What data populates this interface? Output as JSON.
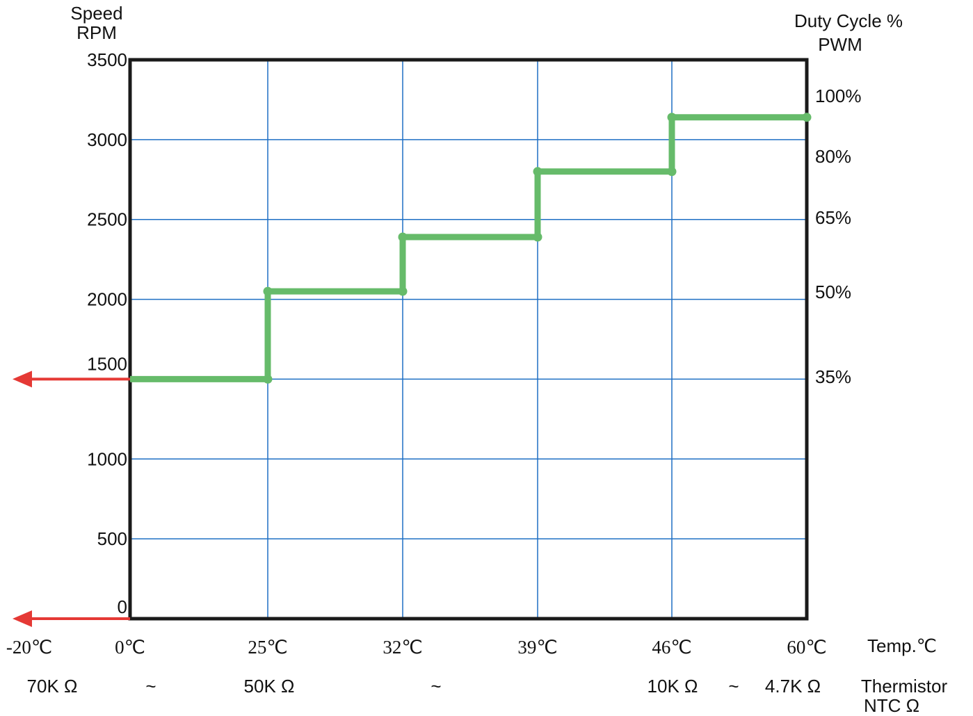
{
  "chart_data": {
    "type": "line",
    "step": true,
    "left_axis_title": [
      "Speed",
      "RPM"
    ],
    "right_axis_title": [
      "Duty Cycle %",
      "PWM"
    ],
    "x_axis_title": "Temp.℃",
    "bottom_title": [
      "Thermistor",
      "NTC Ω"
    ],
    "y_ticks": [
      "0",
      "500",
      "1000",
      "1500",
      "2000",
      "2500",
      "3000",
      "3500"
    ],
    "ylim": [
      0,
      3500
    ],
    "x_ticks": [
      "-20℃",
      "0℃",
      "25℃",
      "32℃",
      "39℃",
      "46℃",
      "60℃"
    ],
    "duty_ticks": [
      {
        "label": "35%",
        "rpm": 1500
      },
      {
        "label": "50%",
        "rpm": 2040
      },
      {
        "label": "65%",
        "rpm": 2500
      },
      {
        "label": "80%",
        "rpm": 2880
      },
      {
        "label": "100%",
        "rpm": 3270
      }
    ],
    "thermistor_labels": [
      {
        "text": "70K Ω",
        "slot": 0
      },
      {
        "text": "~",
        "slot": 1
      },
      {
        "text": "50K Ω",
        "slot": 2
      },
      {
        "text": "~",
        "slot": 3
      },
      {
        "text": "10K Ω",
        "slot": 4
      },
      {
        "text": "~",
        "slot": 5
      },
      {
        "text": "4.7K Ω",
        "slot": 6
      }
    ],
    "series": [
      {
        "color": "#66bb6a",
        "points": [
          {
            "temp": "0℃",
            "rpm": 1500
          },
          {
            "temp": "25℃",
            "rpm": 1500
          },
          {
            "temp": "25℃",
            "rpm": 2050
          },
          {
            "temp": "32℃",
            "rpm": 2050
          },
          {
            "temp": "32℃",
            "rpm": 2390
          },
          {
            "temp": "39℃",
            "rpm": 2390
          },
          {
            "temp": "39℃",
            "rpm": 2800
          },
          {
            "temp": "46℃",
            "rpm": 2800
          },
          {
            "temp": "46℃",
            "rpm": 3140
          },
          {
            "temp": "60℃",
            "rpm": 3140
          }
        ]
      }
    ],
    "arrows": [
      {
        "rpm": 1500,
        "direction": "left",
        "color": "#e53935"
      },
      {
        "rpm": 0,
        "direction": "left",
        "color": "#e53935"
      }
    ],
    "grid": true,
    "colors": {
      "grid": "#1e6fc4",
      "frame": "#1a1a1a",
      "text": "#111111"
    }
  }
}
